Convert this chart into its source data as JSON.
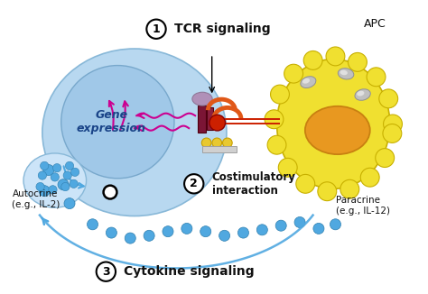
{
  "background_color": "#ffffff",
  "labels": {
    "tcr": "TCR signaling",
    "costim": "Costimulatory\ninteraction",
    "cytokine": "Cytokine signaling",
    "apc": "APC",
    "gene": "Gene\nexpression",
    "autocrine": "Autocrine\n(e.g., IL-2)",
    "paracrine": "Paracrine\n(e.g., IL-12)"
  },
  "colors": {
    "t_cell_outer": "#b8d8f0",
    "t_cell_inner": "#90c4e8",
    "apc_body": "#f0e030",
    "apc_nucleus": "#e89820",
    "apc_border": "#c88010",
    "cytokine_dots": "#50a8e0",
    "tcr_dark": "#7b1535",
    "tcr_orange": "#e05818",
    "arrow_magenta": "#cc0090",
    "arrow_blue": "#50a8e0",
    "costim_mol": "#e8c830",
    "text_dark": "#111111"
  }
}
